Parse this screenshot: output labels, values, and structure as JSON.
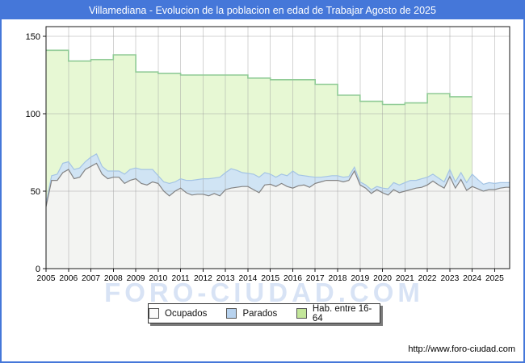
{
  "window": {
    "title": "Villamediana - Evolucion de la poblacion en edad de Trabajar Agosto de 2025"
  },
  "watermark": "FORO-CIUDAD.COM",
  "footer": {
    "url": "http://www.foro-ciudad.com"
  },
  "colors": {
    "frame_blue": "#4577d9",
    "hab_fill": "#e5f7d0",
    "hab_line": "#90cb96",
    "parados_fill": "#cfe3f5",
    "parados_line": "#a4c4e4",
    "ocupados_fill": "#f3f3f3",
    "ocupados_line": "#838383"
  },
  "legend": {
    "items": [
      {
        "label": "Ocupados",
        "swatch": "#fbfbfb"
      },
      {
        "label": "Parados",
        "swatch": "#b7d2ee"
      },
      {
        "label": "Hab. entre 16-64",
        "swatch": "#c3e69a"
      }
    ]
  },
  "chart_data": {
    "type": "area",
    "title": "Villamediana - Evolucion de la poblacion en edad de Trabajar Agosto de 2025",
    "x_axis": {
      "min": 2005,
      "max": 2025.67,
      "tick_years": [
        2005,
        2006,
        2007,
        2008,
        2009,
        2010,
        2011,
        2012,
        2013,
        2014,
        2015,
        2016,
        2017,
        2018,
        2019,
        2020,
        2021,
        2022,
        2023,
        2024,
        2025
      ],
      "gridlines": true
    },
    "y_axis": {
      "min": 0,
      "max": 156,
      "ticks": [
        0,
        50,
        100,
        150
      ],
      "gridlines": true
    },
    "legend_position": "bottom",
    "series": [
      {
        "name": "Hab. entre 16-64",
        "render": "annual-steps",
        "x_start_year": 2005,
        "x_end_year": 2024,
        "values": [
          141,
          134,
          135,
          138,
          127,
          126,
          125,
          125,
          125,
          123,
          122,
          122,
          119,
          112,
          108,
          106,
          107,
          113,
          111
        ]
      },
      {
        "name": "Parados",
        "render": "stacked-band-on-ocupados",
        "x_start": 2005,
        "x_step": 0.25,
        "x_end": 2025.67,
        "values": [
          2,
          3,
          4,
          6,
          5,
          6,
          6,
          5,
          6,
          6,
          5,
          5,
          4,
          4,
          6,
          7,
          7,
          9,
          10,
          8,
          5,
          6,
          8,
          6,
          6,
          8,
          9.5,
          9.5,
          10,
          11,
          10,
          12,
          11,
          12.5,
          11,
          9,
          8.5,
          10,
          10,
          8,
          6.5,
          6,
          6,
          7,
          11,
          7,
          6,
          7,
          4,
          3,
          2.5,
          3,
          3,
          3,
          2.5,
          2.5,
          2,
          2,
          2.5,
          2,
          3,
          4,
          4.5,
          5,
          5.5,
          6,
          5,
          5.5,
          5,
          4.5,
          4.5,
          4,
          4.5,
          4,
          4.5,
          5,
          8,
          6,
          4.5,
          4.5,
          4,
          3.5,
          3
        ]
      },
      {
        "name": "Ocupados",
        "render": "area",
        "x_start": 2005,
        "x_step": 0.25,
        "x_end": 2025.67,
        "values": [
          40,
          57,
          57,
          62,
          64,
          58,
          59,
          64,
          66,
          68,
          61,
          58,
          59,
          59,
          55,
          57,
          58,
          55,
          54,
          56,
          55,
          50,
          47,
          50,
          52,
          49,
          47.5,
          48,
          48,
          47,
          48.5,
          47,
          51,
          52,
          52.5,
          53,
          53,
          51,
          49,
          54,
          54.5,
          53,
          55,
          53,
          52,
          53.5,
          54,
          52.5,
          55,
          56,
          57,
          57,
          57,
          56,
          57,
          63,
          54,
          52,
          48.5,
          51,
          49,
          47.5,
          51,
          49,
          50,
          51,
          52,
          52.5,
          54,
          56.5,
          54,
          52,
          59.5,
          52,
          57.5,
          50.5,
          53,
          51.5,
          50,
          51,
          51,
          52,
          52.5
        ]
      }
    ]
  }
}
